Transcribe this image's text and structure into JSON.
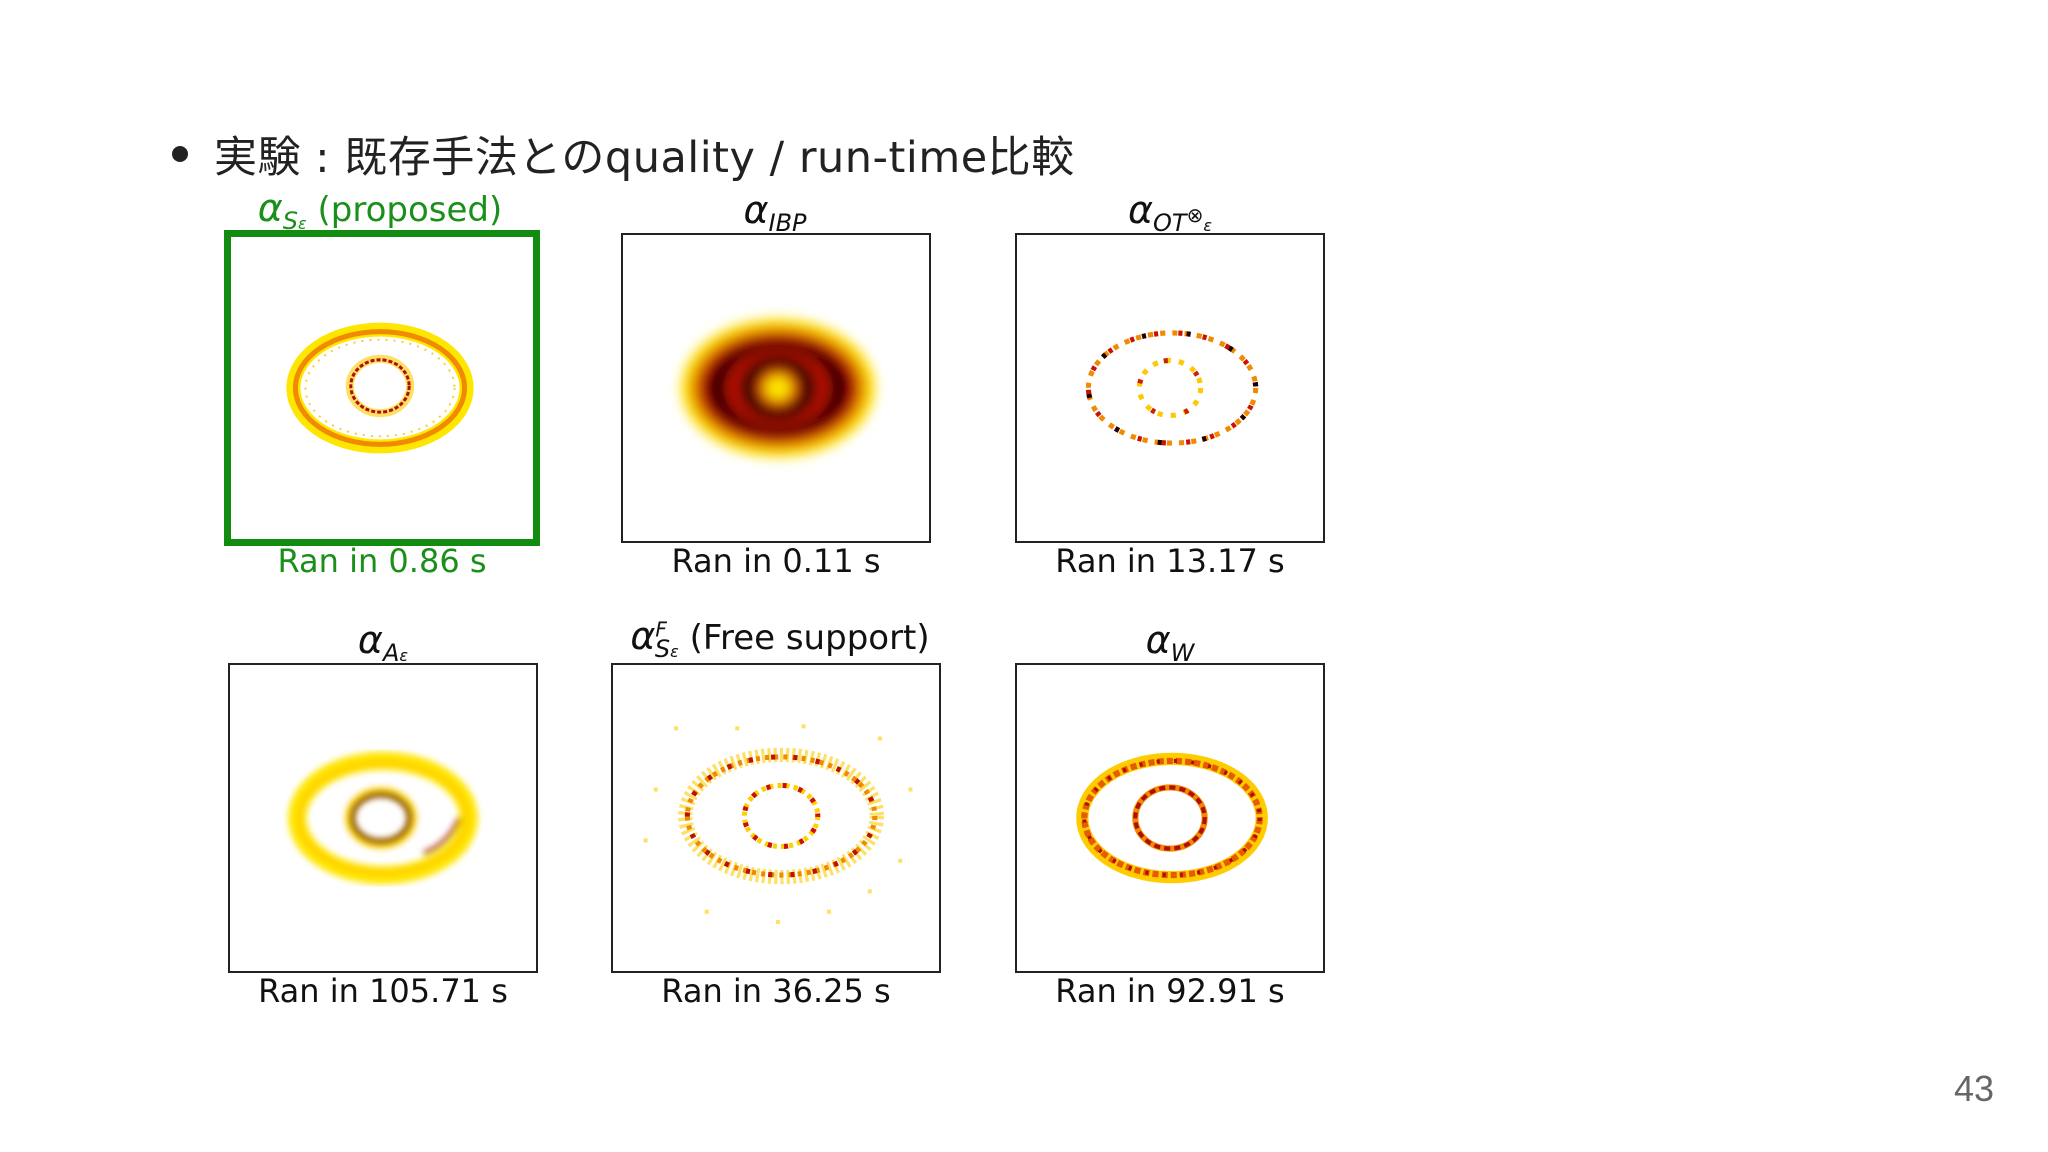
{
  "bullet": {
    "text": "実験 : 既存手法とのquality / run-time比較"
  },
  "panels": [
    {
      "title_symbol": "α",
      "title_sub": "S",
      "title_sub2": "ε",
      "title_suffix": " (proposed)",
      "caption": "Ran in 0.86 s",
      "highlighted": true
    },
    {
      "title_symbol": "α",
      "title_sub": "IBP",
      "caption": "Ran in 0.11 s",
      "highlighted": false
    },
    {
      "title_symbol": "α",
      "title_sub": "OT",
      "title_sup": "⊗",
      "title_sub2": "ε",
      "caption": "Ran in 13.17 s",
      "highlighted": false
    },
    {
      "title_symbol": "α",
      "title_sub": "A",
      "title_sub2": "ε",
      "caption": "Ran in 105.71 s",
      "highlighted": false
    },
    {
      "title_symbol": "α",
      "title_sup": "F",
      "title_sub": "S",
      "title_sub2": "ε",
      "title_suffix": " (Free support)",
      "caption": "Ran in 36.25 s",
      "highlighted": false
    },
    {
      "title_symbol": "α",
      "title_sub": "W",
      "caption": "Ran in 92.91 s",
      "highlighted": false
    }
  ],
  "page_number": "43",
  "colors": {
    "highlight": "#118c11",
    "highlight_text": "#1a8f1a",
    "ring_dark": "#5a0000",
    "ring_red": "#cc1100",
    "ring_orange": "#f08a00",
    "ring_yellow": "#ffe600"
  }
}
